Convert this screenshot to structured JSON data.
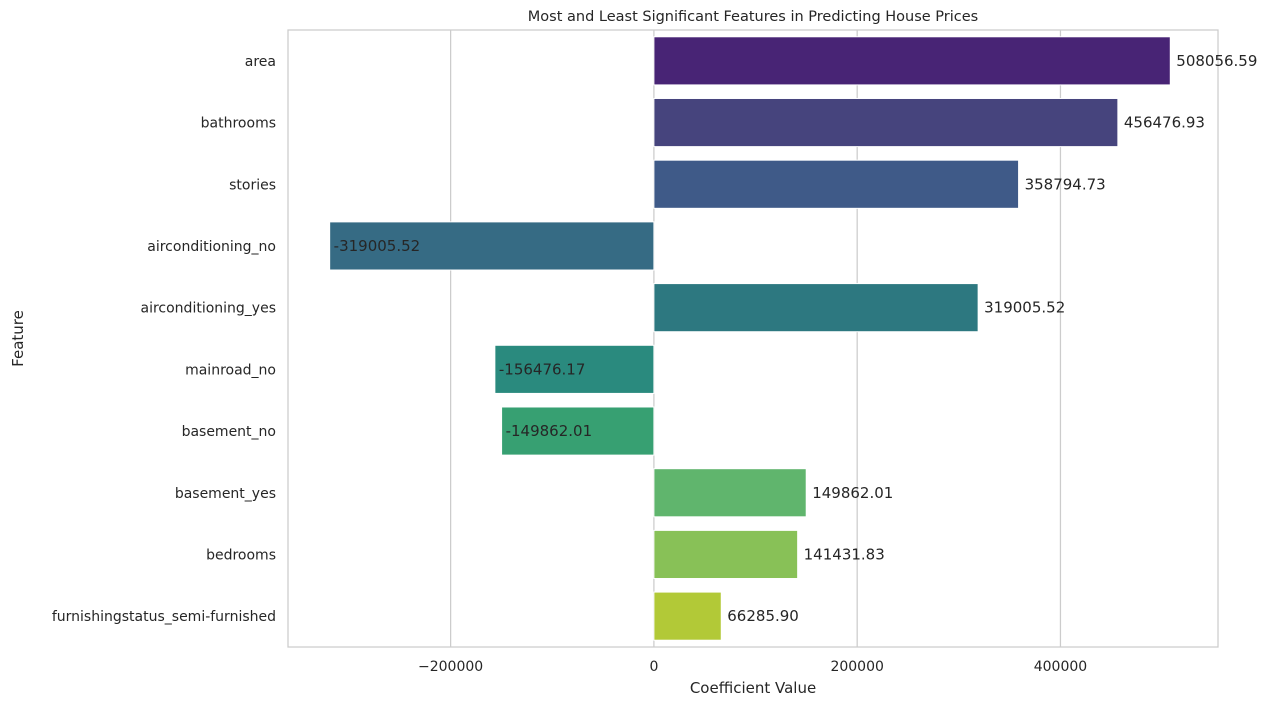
{
  "chart_data": {
    "type": "bar",
    "orientation": "horizontal",
    "title": "Most and Least Significant Features in Predicting House Prices",
    "xlabel": "Coefficient Value",
    "ylabel": "Feature",
    "xlim": [
      -360000,
      555000
    ],
    "xticks": [
      -200000,
      0,
      200000,
      400000
    ],
    "xtick_labels": [
      "−200000",
      "0",
      "200000",
      "400000"
    ],
    "grid": "vertical",
    "categories": [
      "area",
      "bathrooms",
      "stories",
      "airconditioning_no",
      "airconditioning_yes",
      "mainroad_no",
      "basement_no",
      "basement_yes",
      "bedrooms",
      "furnishingstatus_semi-furnished"
    ],
    "values": [
      508056.59,
      456476.93,
      358794.73,
      -319005.52,
      319005.52,
      -156476.17,
      -149862.01,
      149862.01,
      141431.83,
      66285.9
    ],
    "value_labels": [
      "508056.59",
      "456476.93",
      "358794.73",
      "-319005.52",
      "319005.52",
      "-156476.17",
      "-149862.01",
      "149862.01",
      "141431.83",
      "66285.90"
    ],
    "colors": [
      "#482475",
      "#46447d",
      "#3f5a88",
      "#366b84",
      "#2d7880",
      "#2a8a7e",
      "#37a072",
      "#60b56d",
      "#88c157",
      "#b2c937"
    ]
  }
}
